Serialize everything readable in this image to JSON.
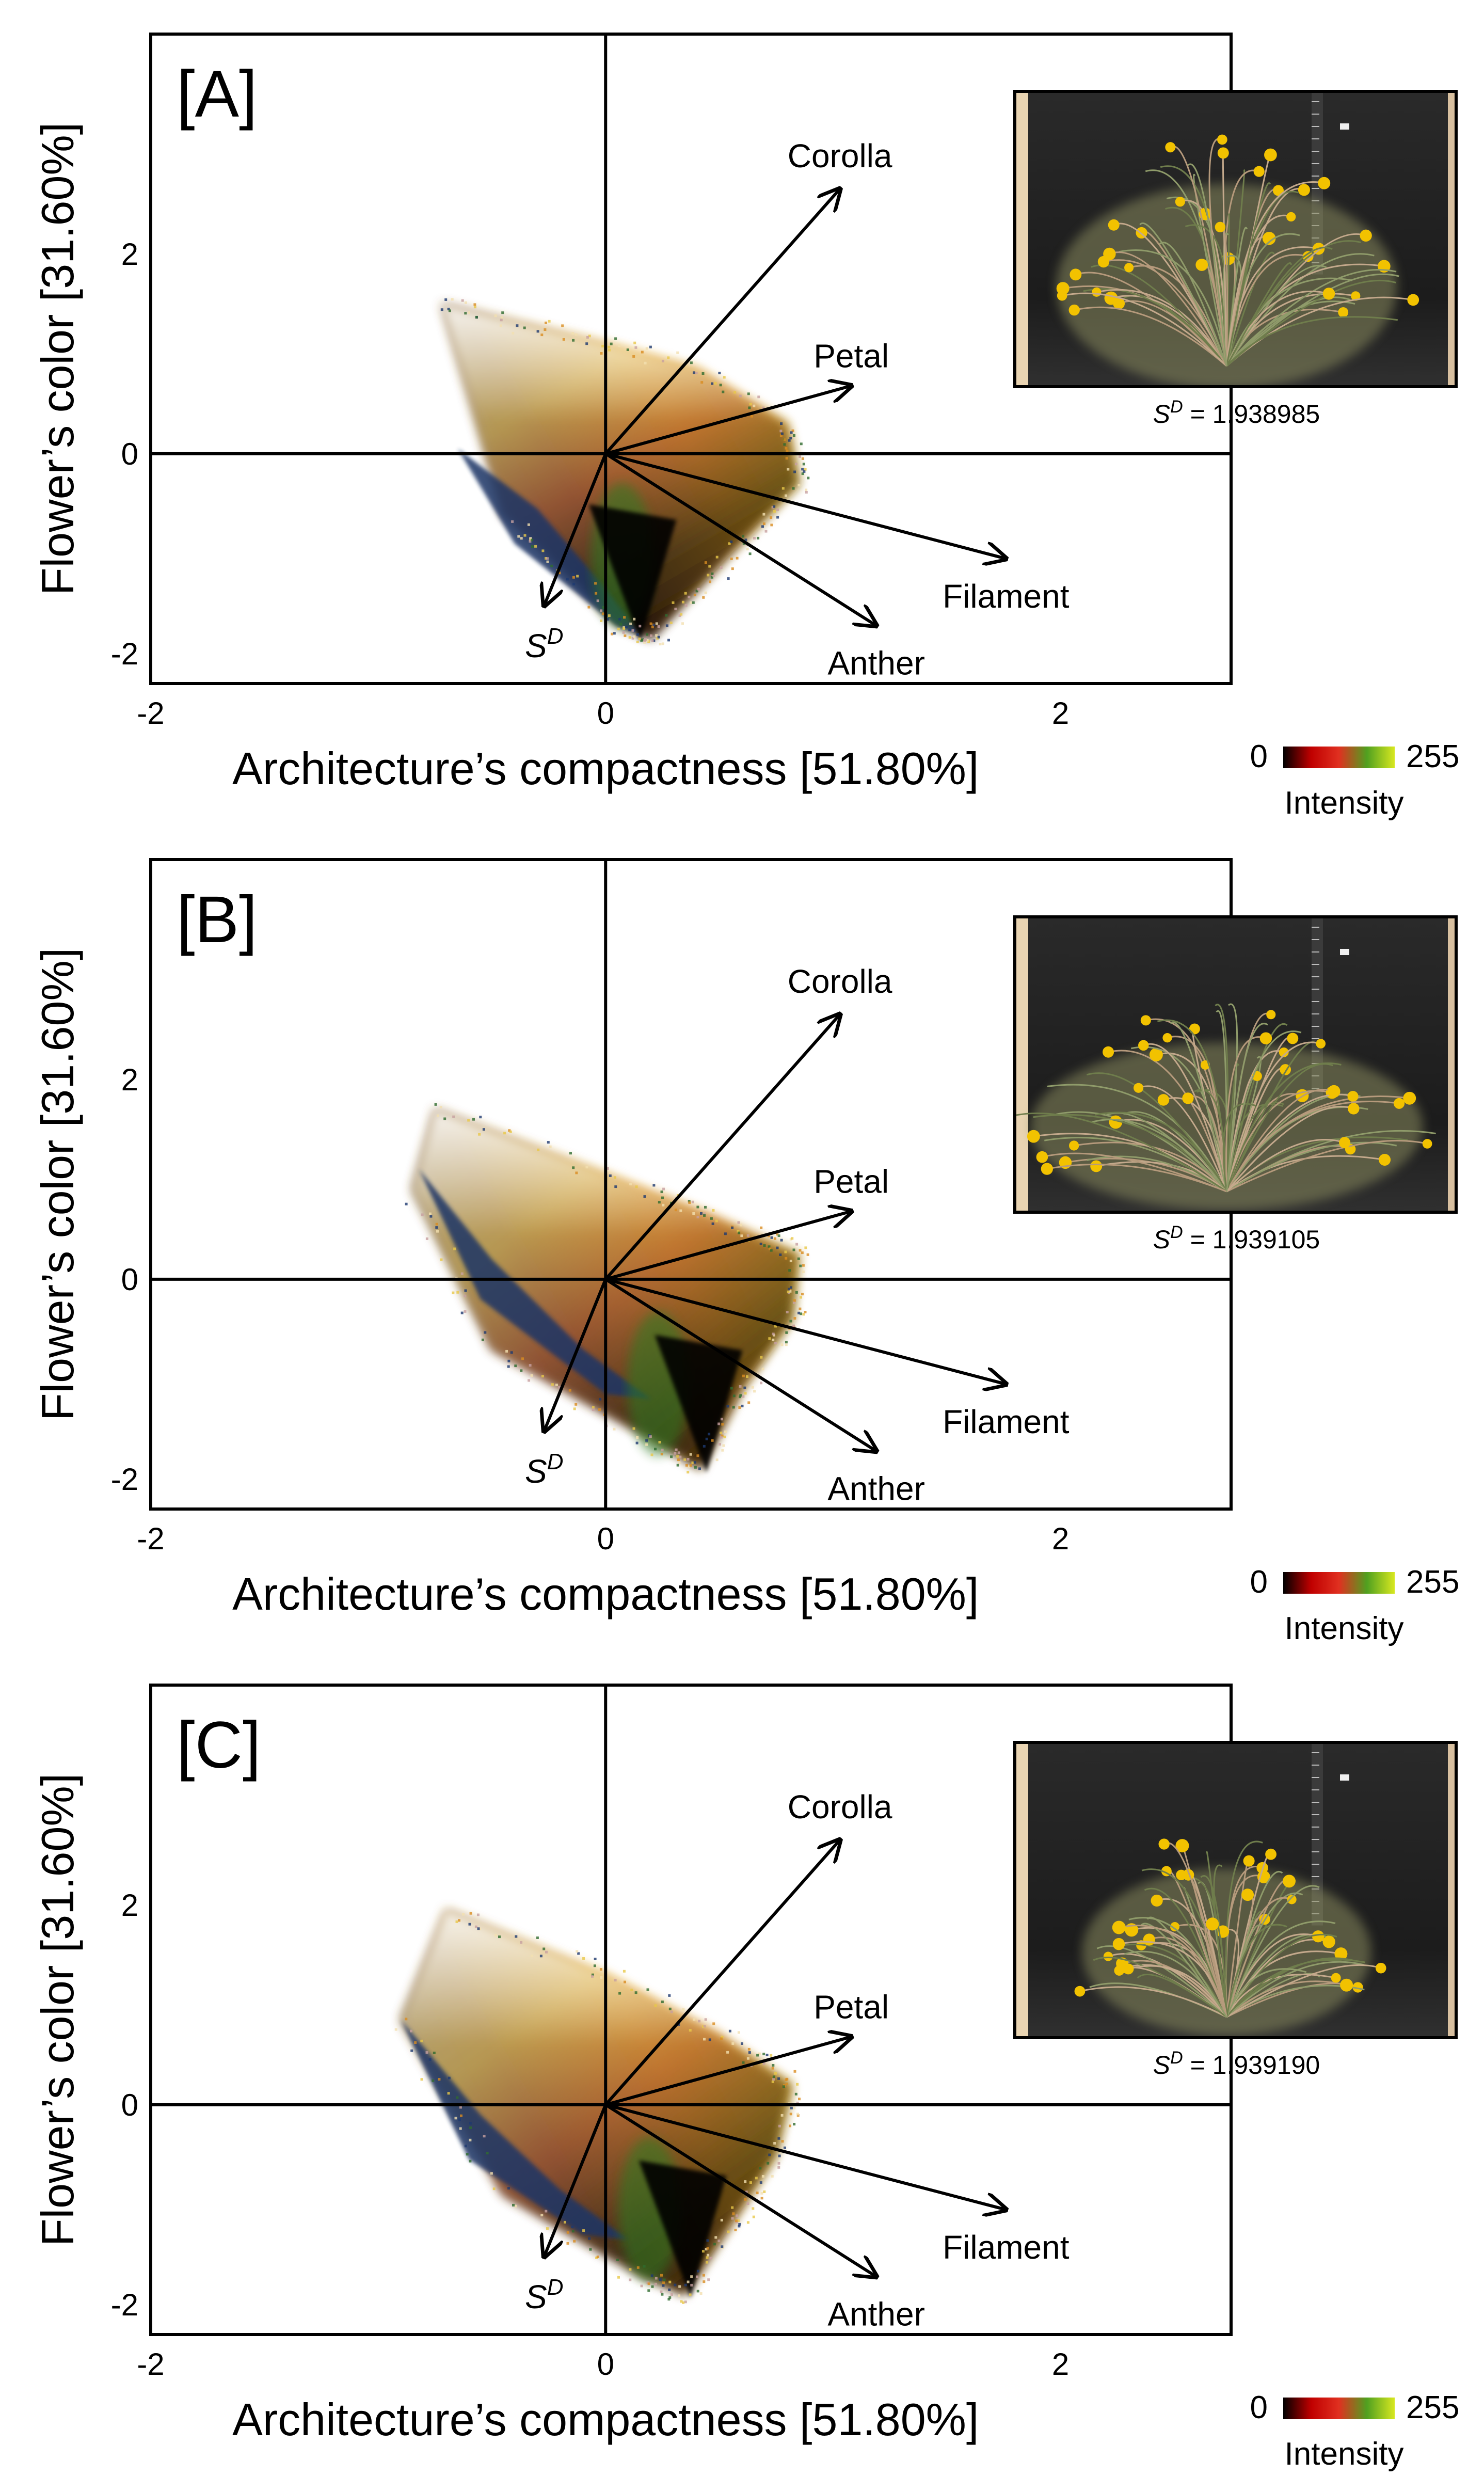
{
  "figure": {
    "colorbar": {
      "min_label": "0",
      "max_label": "255",
      "label": "Intensity",
      "stops": [
        "#000000",
        "#c00000",
        "#e03020",
        "#50a020",
        "#d8e820"
      ]
    },
    "panels": [
      {
        "chart_data": {
          "type": "scatter",
          "panel_label": "[A]",
          "xlabel": "Architecture’s compactness [51.80%]",
          "ylabel": "Flower’s color [31.60%]",
          "xlim": [
            -2,
            2.75
          ],
          "ylim": [
            -2.3,
            4.2
          ],
          "xticks": [
            "-2",
            "0",
            "2"
          ],
          "yticks": [
            "-2",
            "0",
            "2"
          ],
          "vectors": [
            {
              "name": "Corolla",
              "x": 1.03,
              "y": 2.65
            },
            {
              "name": "Petal",
              "x": 1.08,
              "y": 0.68
            },
            {
              "name": "Filament",
              "x": 1.76,
              "y": -1.05
            },
            {
              "name": "Anther",
              "x": 1.19,
              "y": -1.72
            },
            {
              "name": "S",
              "sup": "D",
              "x": -0.27,
              "y": -1.52
            }
          ],
          "cloud": {
            "outline": [
              [
                -0.72,
                1.5
              ],
              [
                0.0,
                1.1
              ],
              [
                0.4,
                0.85
              ],
              [
                0.8,
                0.3
              ],
              [
                0.85,
                -0.3
              ],
              [
                0.55,
                -1.0
              ],
              [
                0.2,
                -1.85
              ],
              [
                0.05,
                -1.7
              ],
              [
                -0.45,
                -0.6
              ]
            ],
            "blue_band": [
              [
                -0.65,
                0.05
              ],
              [
                -0.3,
                -0.55
              ],
              [
                0.0,
                -1.35
              ],
              [
                0.15,
                -1.8
              ],
              [
                0.05,
                -1.72
              ],
              [
                -0.4,
                -0.9
              ]
            ],
            "tip": [
              0.13,
              -1.85
            ]
          },
          "inset": {
            "plant": "rounded",
            "sd_label": "S",
            "sd_sup": "D",
            "sd_value": "= 1.938985"
          }
        }
      },
      {
        "chart_data": {
          "type": "scatter",
          "panel_label": "[B]",
          "xlabel": "Architecture’s compactness [51.80%]",
          "ylabel": "Flower’s color [31.60%]",
          "xlim": [
            -2,
            2.75
          ],
          "ylim": [
            -2.3,
            4.2
          ],
          "xticks": [
            "-2",
            "0",
            "2"
          ],
          "yticks": [
            "-2",
            "0",
            "2"
          ],
          "vectors": [
            {
              "name": "Corolla",
              "x": 1.03,
              "y": 2.65
            },
            {
              "name": "Petal",
              "x": 1.08,
              "y": 0.68
            },
            {
              "name": "Filament",
              "x": 1.76,
              "y": -1.05
            },
            {
              "name": "Anther",
              "x": 1.19,
              "y": -1.72
            },
            {
              "name": "S",
              "sup": "D",
              "x": -0.27,
              "y": -1.52
            }
          ],
          "cloud": {
            "outline": [
              [
                -0.75,
                1.7
              ],
              [
                0.0,
                1.05
              ],
              [
                0.45,
                0.65
              ],
              [
                0.85,
                0.25
              ],
              [
                0.82,
                -0.4
              ],
              [
                0.6,
                -1.1
              ],
              [
                0.42,
                -1.9
              ],
              [
                0.2,
                -1.6
              ],
              [
                -0.5,
                -0.7
              ],
              [
                -0.85,
                0.9
              ]
            ],
            "blue_band": [
              [
                -0.82,
                1.1
              ],
              [
                -0.5,
                0.2
              ],
              [
                -0.1,
                -0.7
              ],
              [
                0.2,
                -1.2
              ],
              [
                0.0,
                -1.15
              ],
              [
                -0.55,
                -0.2
              ]
            ],
            "tip": [
              0.42,
              -1.9
            ]
          },
          "inset": {
            "plant": "wide",
            "sd_label": "S",
            "sd_sup": "D",
            "sd_value": "= 1.939105"
          }
        }
      },
      {
        "chart_data": {
          "type": "scatter",
          "panel_label": "[C]",
          "xlabel": "Architecture’s compactness [51.80%]",
          "ylabel": "Flower’s color [31.60%]",
          "xlim": [
            -2,
            2.75
          ],
          "ylim": [
            -2.3,
            4.2
          ],
          "xticks": [
            "-2",
            "0",
            "2"
          ],
          "yticks": [
            "-2",
            "0",
            "2"
          ],
          "vectors": [
            {
              "name": "Corolla",
              "x": 1.03,
              "y": 2.65
            },
            {
              "name": "Petal",
              "x": 1.08,
              "y": 0.68
            },
            {
              "name": "Filament",
              "x": 1.76,
              "y": -1.05
            },
            {
              "name": "Anther",
              "x": 1.19,
              "y": -1.72
            },
            {
              "name": "S",
              "sup": "D",
              "x": -0.27,
              "y": -1.52
            }
          ],
          "cloud": {
            "outline": [
              [
                -0.7,
                1.95
              ],
              [
                0.0,
                1.3
              ],
              [
                0.5,
                0.7
              ],
              [
                0.82,
                0.2
              ],
              [
                0.75,
                -0.5
              ],
              [
                0.55,
                -1.2
              ],
              [
                0.35,
                -1.9
              ],
              [
                0.15,
                -1.7
              ],
              [
                -0.45,
                -0.9
              ],
              [
                -0.9,
                0.85
              ]
            ],
            "blue_band": [
              [
                -0.9,
                0.85
              ],
              [
                -0.55,
                -0.1
              ],
              [
                -0.2,
                -0.85
              ],
              [
                0.1,
                -1.35
              ],
              [
                -0.1,
                -1.3
              ],
              [
                -0.6,
                -0.55
              ]
            ],
            "tip": [
              0.35,
              -1.9
            ]
          },
          "inset": {
            "plant": "bushy",
            "sd_label": "S",
            "sd_sup": "D",
            "sd_value": "= 1.939190"
          }
        }
      }
    ]
  }
}
